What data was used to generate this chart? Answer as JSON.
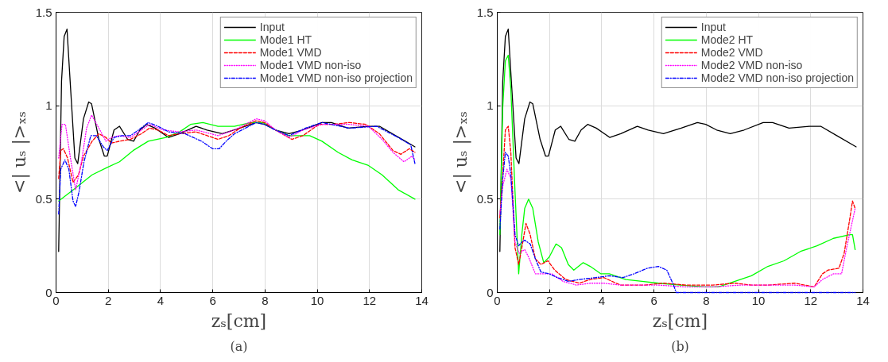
{
  "chart_data": [
    {
      "type": "line",
      "xlabel": "zₛ[cm]",
      "ylabel": "<| uₛ |>ₓₛ",
      "annotations": [
        "(a)"
      ],
      "xlim": [
        0,
        14
      ],
      "ylim": [
        0,
        1.5
      ],
      "xticks": [
        0,
        2,
        4,
        6,
        8,
        10,
        12,
        14
      ],
      "yticks": [
        0,
        0.5,
        1,
        1.5
      ],
      "grid": true,
      "legend": "top right",
      "series": [
        {
          "name": "Input",
          "color": "#000000",
          "line_style": "solid",
          "x": [
            0.1,
            0.21,
            0.31,
            0.42,
            0.54,
            0.72,
            0.83,
            1.05,
            1.25,
            1.36,
            1.64,
            1.85,
            1.96,
            2.22,
            2.43,
            2.74,
            2.97,
            3.21,
            3.46,
            3.79,
            4.31,
            4.73,
            5.36,
            5.78,
            6.36,
            7.04,
            7.66,
            7.98,
            8.4,
            8.92,
            9.45,
            10.18,
            10.54,
            11.17,
            11.96,
            12.38,
            13.0,
            13.74
          ],
          "values": [
            0.22,
            1.13,
            1.37,
            1.41,
            1.13,
            0.72,
            0.69,
            0.93,
            1.02,
            1.01,
            0.82,
            0.73,
            0.73,
            0.87,
            0.89,
            0.82,
            0.81,
            0.87,
            0.9,
            0.88,
            0.83,
            0.85,
            0.89,
            0.87,
            0.85,
            0.88,
            0.91,
            0.9,
            0.87,
            0.85,
            0.87,
            0.91,
            0.91,
            0.88,
            0.89,
            0.89,
            0.84,
            0.78
          ]
        },
        {
          "name": "Mode1 HT",
          "color": "#00ff00",
          "line_style": "solid",
          "x": [
            0.1,
            0.75,
            1.38,
            1.96,
            2.43,
            2.95,
            3.53,
            4.21,
            4.73,
            5.15,
            5.62,
            6.2,
            6.83,
            7.46,
            7.93,
            8.4,
            8.92,
            9.71,
            10.18,
            10.8,
            11.33,
            11.96,
            12.48,
            13.1,
            13.74
          ],
          "values": [
            0.49,
            0.56,
            0.63,
            0.67,
            0.7,
            0.76,
            0.81,
            0.83,
            0.86,
            0.9,
            0.91,
            0.89,
            0.89,
            0.91,
            0.91,
            0.87,
            0.84,
            0.84,
            0.81,
            0.75,
            0.71,
            0.68,
            0.63,
            0.55,
            0.5
          ]
        },
        {
          "name": "Mode1 VMD",
          "color": "#ff0000",
          "line_style": "dashed",
          "x": [
            0.1,
            0.18,
            0.28,
            0.44,
            0.65,
            0.86,
            1.05,
            1.38,
            1.64,
            1.91,
            2.12,
            2.43,
            2.85,
            3.27,
            3.58,
            3.9,
            4.31,
            4.73,
            5.36,
            6.2,
            6.62,
            7.04,
            7.66,
            7.98,
            8.4,
            9.03,
            9.45,
            10.07,
            10.6,
            11.23,
            11.86,
            12.38,
            12.9,
            13.2,
            13.53,
            13.74
          ],
          "values": [
            0.61,
            0.76,
            0.77,
            0.72,
            0.59,
            0.63,
            0.73,
            0.81,
            0.85,
            0.83,
            0.8,
            0.81,
            0.82,
            0.85,
            0.88,
            0.87,
            0.84,
            0.85,
            0.86,
            0.82,
            0.84,
            0.88,
            0.92,
            0.91,
            0.87,
            0.82,
            0.84,
            0.9,
            0.9,
            0.91,
            0.9,
            0.85,
            0.76,
            0.74,
            0.77,
            0.75
          ]
        },
        {
          "name": "Mode1 VMD non-iso",
          "color": "#ff00ff",
          "line_style": "dotted",
          "x": [
            0.1,
            0.23,
            0.36,
            0.54,
            0.75,
            0.96,
            1.17,
            1.36,
            1.64,
            1.91,
            2.12,
            2.43,
            2.85,
            3.27,
            3.58,
            4.11,
            4.73,
            5.36,
            6.2,
            6.83,
            7.66,
            7.98,
            8.4,
            8.92,
            9.45,
            10.18,
            11.23,
            11.96,
            12.48,
            12.9,
            13.32,
            13.63,
            13.74
          ],
          "values": [
            0.72,
            0.9,
            0.9,
            0.73,
            0.55,
            0.69,
            0.88,
            0.95,
            0.88,
            0.81,
            0.83,
            0.84,
            0.83,
            0.87,
            0.9,
            0.87,
            0.86,
            0.87,
            0.84,
            0.87,
            0.93,
            0.92,
            0.87,
            0.83,
            0.87,
            0.9,
            0.9,
            0.89,
            0.82,
            0.75,
            0.7,
            0.73,
            0.71
          ]
        },
        {
          "name": "Mode1 VMD non-iso projection",
          "color": "#0000ff",
          "line_style": "dashdot",
          "x": [
            0.1,
            0.18,
            0.34,
            0.49,
            0.65,
            0.75,
            0.88,
            1.07,
            1.33,
            1.54,
            1.81,
            1.96,
            2.22,
            2.53,
            2.85,
            3.16,
            3.53,
            3.9,
            4.31,
            4.94,
            5.57,
            5.99,
            6.25,
            6.51,
            6.83,
            7.25,
            7.66,
            7.98,
            8.4,
            8.92,
            9.55,
            10.18,
            11.23,
            12.27,
            13.1,
            13.58,
            13.74
          ],
          "values": [
            0.42,
            0.66,
            0.71,
            0.66,
            0.49,
            0.46,
            0.54,
            0.7,
            0.84,
            0.84,
            0.78,
            0.76,
            0.83,
            0.84,
            0.84,
            0.87,
            0.91,
            0.89,
            0.86,
            0.85,
            0.81,
            0.77,
            0.77,
            0.81,
            0.85,
            0.88,
            0.91,
            0.9,
            0.87,
            0.84,
            0.88,
            0.91,
            0.88,
            0.89,
            0.83,
            0.79,
            0.69
          ]
        }
      ]
    },
    {
      "type": "line",
      "xlabel": "zₛ[cm]",
      "ylabel": "<| uₛ |>ₓₛ",
      "annotations": [
        "(b)"
      ],
      "xlim": [
        0,
        14
      ],
      "ylim": [
        0,
        1.5
      ],
      "xticks": [
        0,
        2,
        4,
        6,
        8,
        10,
        12,
        14
      ],
      "yticks": [
        0,
        0.5,
        1,
        1.5
      ],
      "grid": true,
      "legend": "top right",
      "series": [
        {
          "name": "Input",
          "color": "#000000",
          "line_style": "solid",
          "x": [
            0.1,
            0.21,
            0.31,
            0.42,
            0.54,
            0.72,
            0.83,
            1.05,
            1.25,
            1.36,
            1.64,
            1.85,
            1.96,
            2.22,
            2.43,
            2.74,
            2.97,
            3.21,
            3.46,
            3.79,
            4.31,
            4.73,
            5.36,
            5.78,
            6.36,
            7.04,
            7.66,
            7.98,
            8.4,
            8.92,
            9.45,
            10.18,
            10.54,
            11.17,
            11.96,
            12.38,
            13.0,
            13.74
          ],
          "values": [
            0.22,
            1.13,
            1.37,
            1.41,
            1.13,
            0.72,
            0.69,
            0.93,
            1.02,
            1.01,
            0.82,
            0.73,
            0.73,
            0.87,
            0.89,
            0.82,
            0.81,
            0.87,
            0.9,
            0.88,
            0.83,
            0.85,
            0.89,
            0.87,
            0.85,
            0.88,
            0.91,
            0.9,
            0.87,
            0.85,
            0.87,
            0.91,
            0.91,
            0.88,
            0.89,
            0.89,
            0.84,
            0.78
          ]
        },
        {
          "name": "Mode2 HT",
          "color": "#00ff00",
          "line_style": "solid",
          "x": [
            0.1,
            0.21,
            0.31,
            0.42,
            0.52,
            0.68,
            0.82,
            0.94,
            1.05,
            1.2,
            1.36,
            1.57,
            1.78,
            1.99,
            2.25,
            2.46,
            2.72,
            2.93,
            3.29,
            3.56,
            3.97,
            4.29,
            4.92,
            5.54,
            6.17,
            7.0,
            7.95,
            8.47,
            9.1,
            9.73,
            10.36,
            10.98,
            11.61,
            12.24,
            12.87,
            13.49,
            13.6,
            13.7
          ],
          "values": [
            0.31,
            0.99,
            1.24,
            1.27,
            1.09,
            0.54,
            0.1,
            0.31,
            0.45,
            0.5,
            0.45,
            0.27,
            0.16,
            0.19,
            0.26,
            0.24,
            0.15,
            0.12,
            0.16,
            0.14,
            0.1,
            0.1,
            0.07,
            0.06,
            0.05,
            0.04,
            0.03,
            0.03,
            0.06,
            0.09,
            0.14,
            0.17,
            0.22,
            0.25,
            0.29,
            0.31,
            0.31,
            0.23
          ]
        },
        {
          "name": "Mode2 VMD",
          "color": "#ff0000",
          "line_style": "dashed",
          "x": [
            0.1,
            0.21,
            0.31,
            0.42,
            0.52,
            0.68,
            0.82,
            0.94,
            1.1,
            1.26,
            1.46,
            1.67,
            1.94,
            2.2,
            2.62,
            3.14,
            3.56,
            4.08,
            4.71,
            5.65,
            6.38,
            7.22,
            8.26,
            9.1,
            9.73,
            10.36,
            11.4,
            12.13,
            12.45,
            12.66,
            13.08,
            13.28,
            13.49,
            13.6,
            13.7
          ],
          "values": [
            0.4,
            0.63,
            0.87,
            0.89,
            0.75,
            0.24,
            0.15,
            0.24,
            0.37,
            0.31,
            0.18,
            0.15,
            0.17,
            0.12,
            0.07,
            0.05,
            0.07,
            0.08,
            0.04,
            0.04,
            0.05,
            0.04,
            0.04,
            0.05,
            0.04,
            0.04,
            0.05,
            0.03,
            0.1,
            0.12,
            0.13,
            0.21,
            0.39,
            0.49,
            0.45
          ]
        },
        {
          "name": "Mode2 VMD non-iso",
          "color": "#ff00ff",
          "line_style": "dotted",
          "x": [
            0.1,
            0.21,
            0.37,
            0.52,
            0.68,
            0.84,
            1.05,
            1.2,
            1.46,
            1.78,
            2.09,
            2.51,
            3.03,
            3.56,
            4.08,
            4.71,
            6.17,
            7.22,
            8.26,
            9.31,
            10.36,
            11.4,
            12.13,
            12.45,
            12.87,
            13.18,
            13.39,
            13.7
          ],
          "values": [
            0.42,
            0.57,
            0.66,
            0.61,
            0.27,
            0.21,
            0.23,
            0.19,
            0.1,
            0.1,
            0.1,
            0.06,
            0.04,
            0.05,
            0.05,
            0.04,
            0.04,
            0.03,
            0.03,
            0.04,
            0.04,
            0.04,
            0.03,
            0.07,
            0.1,
            0.1,
            0.25,
            0.45
          ]
        },
        {
          "name": "Mode2 VMD non-iso projection",
          "color": "#0000ff",
          "line_style": "dashdot",
          "x": [
            0.1,
            0.21,
            0.31,
            0.42,
            0.52,
            0.68,
            0.82,
            0.94,
            1.05,
            1.26,
            1.46,
            1.67,
            1.99,
            2.3,
            2.72,
            3.14,
            3.77,
            4.29,
            4.81,
            5.23,
            5.75,
            6.17,
            6.49,
            6.75,
            6.85,
            8.26,
            10.36,
            12.45,
            13.7
          ],
          "values": [
            0.34,
            0.61,
            0.75,
            0.73,
            0.63,
            0.31,
            0.25,
            0.27,
            0.28,
            0.26,
            0.18,
            0.11,
            0.1,
            0.08,
            0.06,
            0.07,
            0.08,
            0.09,
            0.08,
            0.1,
            0.13,
            0.14,
            0.12,
            0.04,
            0,
            0,
            0,
            0,
            0
          ]
        }
      ]
    }
  ]
}
